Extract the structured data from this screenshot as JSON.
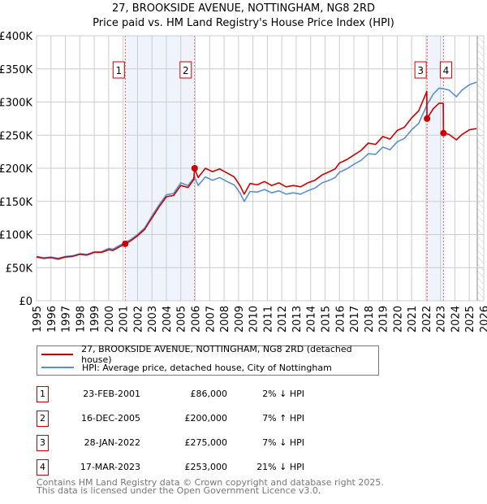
{
  "title_line1": "27, BROOKSIDE AVENUE, NOTTINGHAM, NG8 2RD",
  "title_line2": "Price paid vs. HM Land Registry's House Price Index (HPI)",
  "legend": {
    "property": "27, BROOKSIDE AVENUE, NOTTINGHAM, NG8 2RD (detached house)",
    "hpi": "HPI: Average price, detached house, City of Nottingham"
  },
  "colors": {
    "property": "#cc0000",
    "hpi": "#5b8fd4",
    "shade": "#eef3fc",
    "marker_border": "#cc0000"
  },
  "sales": [
    {
      "num": "1",
      "date": "23-FEB-2001",
      "price": "£86,000",
      "hpi": "2% ↓ HPI",
      "year": 2001.15,
      "value": 86
    },
    {
      "num": "2",
      "date": "16-DEC-2005",
      "price": "£200,000",
      "hpi": "7% ↑ HPI",
      "year": 2005.96,
      "value": 200
    },
    {
      "num": "3",
      "date": "28-JAN-2022",
      "price": "£275,000",
      "hpi": "7% ↓ HPI",
      "year": 2022.07,
      "value": 275
    },
    {
      "num": "4",
      "date": "17-MAR-2023",
      "price": "£253,000",
      "hpi": "21% ↓ HPI",
      "year": 2023.21,
      "value": 253
    }
  ],
  "footer": {
    "line1": "Contains HM Land Registry data © Crown copyright and database right 2025.",
    "line2": "This data is licensed under the Open Government Licence v3.0."
  },
  "chart_data": {
    "type": "line",
    "title": "27, BROOKSIDE AVENUE, NOTTINGHAM, NG8 2RD — Price paid vs. HM Land Registry's House Price Index (HPI)",
    "xlabel": "",
    "ylabel": "",
    "xlim": [
      1995,
      2026
    ],
    "ylim": [
      0,
      400
    ],
    "y_unit": "£K",
    "yticks": [
      "£0",
      "£50K",
      "£100K",
      "£150K",
      "£200K",
      "£250K",
      "£300K",
      "£350K",
      "£400K"
    ],
    "xticks": [
      "1995",
      "1996",
      "1997",
      "1998",
      "1999",
      "2000",
      "2001",
      "2002",
      "2003",
      "2004",
      "2005",
      "2006",
      "2007",
      "2008",
      "2009",
      "2010",
      "2011",
      "2012",
      "2013",
      "2014",
      "2015",
      "2016",
      "2017",
      "2018",
      "2019",
      "2020",
      "2021",
      "2022",
      "2023",
      "2024",
      "2025",
      "2026"
    ],
    "grid": true,
    "legend_position": "below",
    "series": [
      {
        "name": "27, BROOKSIDE AVENUE, NOTTINGHAM, NG8 2RD (detached house)",
        "x": [
          1995.0,
          1995.5,
          1996.0,
          1996.5,
          1997.0,
          1997.5,
          1998.0,
          1998.5,
          1999.0,
          1999.5,
          2000.0,
          2000.3,
          2000.8,
          2001.15,
          2001.5,
          2002.0,
          2002.5,
          2003.0,
          2003.5,
          2004.0,
          2004.5,
          2005.0,
          2005.5,
          2005.9,
          2005.96,
          2006.2,
          2006.7,
          2007.2,
          2007.7,
          2008.2,
          2008.7,
          2009.1,
          2009.4,
          2009.8,
          2010.3,
          2010.8,
          2011.3,
          2011.8,
          2012.3,
          2012.8,
          2013.3,
          2013.8,
          2014.3,
          2014.8,
          2015.3,
          2015.7,
          2016.0,
          2016.5,
          2017.0,
          2017.5,
          2018.0,
          2018.5,
          2019.0,
          2019.5,
          2020.0,
          2020.5,
          2021.0,
          2021.5,
          2022.05,
          2022.07,
          2022.5,
          2022.9,
          2023.19,
          2023.21,
          2023.6,
          2024.1,
          2024.5,
          2025.0,
          2025.5
        ],
        "y": [
          66,
          64,
          65,
          63,
          66,
          67,
          70,
          69,
          73,
          73,
          77,
          76,
          82,
          86,
          90,
          98,
          108,
          125,
          142,
          157,
          159,
          174,
          171,
          183,
          200,
          186,
          200,
          195,
          199,
          193,
          187,
          174,
          161,
          177,
          175,
          180,
          174,
          178,
          172,
          174,
          172,
          178,
          182,
          190,
          195,
          199,
          208,
          213,
          220,
          227,
          238,
          236,
          248,
          244,
          257,
          262,
          276,
          287,
          316,
          275,
          290,
          298,
          298,
          253,
          251,
          243,
          251,
          258,
          260
        ]
      },
      {
        "name": "HPI: Average price, detached house, City of Nottingham",
        "x": [
          1995.0,
          1995.5,
          1996.0,
          1996.5,
          1997.0,
          1997.5,
          1998.0,
          1998.5,
          1999.0,
          1999.5,
          2000.0,
          2000.3,
          2000.8,
          2001.15,
          2001.5,
          2002.0,
          2002.5,
          2003.0,
          2003.5,
          2004.0,
          2004.5,
          2005.0,
          2005.5,
          2005.96,
          2006.2,
          2006.7,
          2007.2,
          2007.7,
          2008.2,
          2008.7,
          2009.1,
          2009.4,
          2009.8,
          2010.3,
          2010.8,
          2011.3,
          2011.8,
          2012.3,
          2012.8,
          2013.3,
          2013.8,
          2014.3,
          2014.8,
          2015.3,
          2015.7,
          2016.0,
          2016.5,
          2017.0,
          2017.5,
          2018.0,
          2018.5,
          2019.0,
          2019.5,
          2020.0,
          2020.5,
          2021.0,
          2021.5,
          2022.07,
          2022.5,
          2022.9,
          2023.21,
          2023.6,
          2024.1,
          2024.5,
          2025.0,
          2025.5
        ],
        "y": [
          67,
          65,
          66,
          64,
          67,
          68,
          71,
          70,
          74,
          74,
          79,
          78,
          84,
          88,
          92,
          100,
          110,
          128,
          145,
          160,
          162,
          178,
          174,
          187,
          174,
          187,
          182,
          186,
          180,
          175,
          163,
          150,
          165,
          164,
          168,
          163,
          166,
          161,
          163,
          161,
          166,
          170,
          178,
          182,
          186,
          194,
          199,
          206,
          212,
          222,
          221,
          232,
          228,
          240,
          245,
          258,
          268,
          296,
          312,
          321,
          320,
          318,
          308,
          318,
          326,
          330
        ]
      }
    ]
  }
}
